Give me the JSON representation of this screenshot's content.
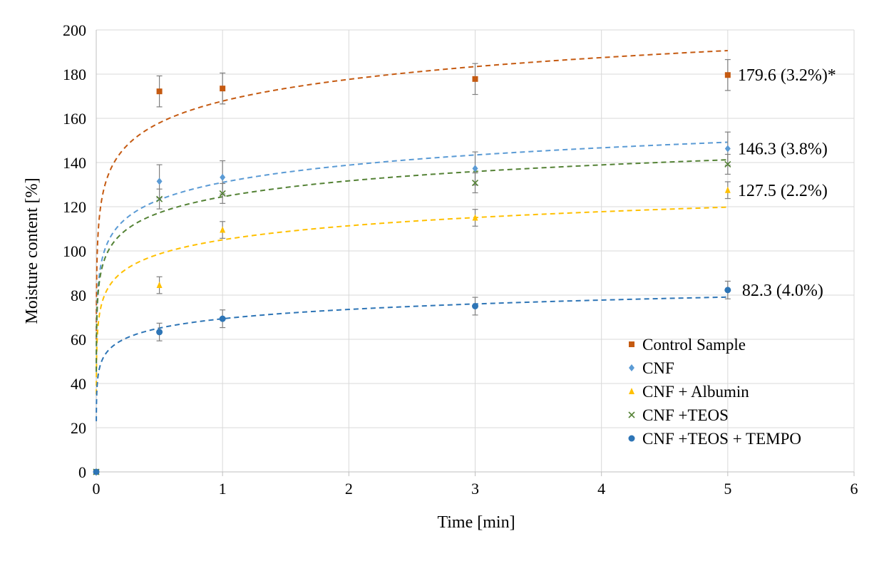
{
  "chart_data": {
    "type": "scatter",
    "title": "",
    "xlabel": "Time [min]",
    "ylabel": "Moisture content [%]",
    "xlim": [
      0,
      6
    ],
    "ylim": [
      0,
      200
    ],
    "x_ticks": [
      0,
      1,
      2,
      3,
      4,
      5,
      6
    ],
    "y_ticks": [
      0,
      20,
      40,
      60,
      80,
      100,
      120,
      140,
      160,
      180,
      200
    ],
    "grid": true,
    "legend_position": "bottom-right",
    "trendline": "logarithmic, dashed",
    "series": [
      {
        "name": "Control Sample",
        "marker": "square",
        "color": "#C55A11",
        "x": [
          0,
          0.5,
          1,
          3,
          5
        ],
        "y": [
          0,
          172.2,
          173.5,
          177.8,
          179.6
        ],
        "error": [
          0,
          7.0,
          7.0,
          7.0,
          7.0
        ],
        "trend": {
          "a": 167.8,
          "b": 14.2,
          "x_start": 0.0005
        }
      },
      {
        "name": "CNF",
        "marker": "diamond",
        "color": "#5B9BD5",
        "x": [
          0,
          0.5,
          1,
          3,
          5
        ],
        "y": [
          0,
          131.5,
          133.3,
          137.3,
          146.3
        ],
        "error": [
          0,
          7.5,
          7.5,
          7.5,
          7.5
        ],
        "trend": {
          "a": 131.0,
          "b": 11.3,
          "x_start": 0.0005
        }
      },
      {
        "name": "CNF + Albumin",
        "marker": "triangle",
        "color": "#FFC000",
        "x": [
          0,
          0.5,
          1,
          3,
          5
        ],
        "y": [
          0,
          84.5,
          109.5,
          115.0,
          127.5
        ],
        "error": [
          0,
          3.8,
          3.8,
          3.8,
          3.8
        ],
        "trend": {
          "a": 105.0,
          "b": 9.2,
          "x_start": 0.0005
        }
      },
      {
        "name": "CNF +TEOS",
        "marker": "x",
        "color": "#548235",
        "x": [
          0,
          0.5,
          1,
          3,
          5
        ],
        "y": [
          0,
          123.5,
          126.0,
          130.8,
          139.2
        ],
        "error": [
          0,
          4.5,
          4.5,
          4.5,
          4.5
        ],
        "trend": {
          "a": 124.5,
          "b": 10.4,
          "x_start": 0.0005
        }
      },
      {
        "name": "CNF +TEOS + TEMPO",
        "marker": "circle",
        "color": "#2E75B6",
        "x": [
          0,
          0.5,
          1,
          3,
          5
        ],
        "y": [
          0,
          63.3,
          69.3,
          75.0,
          82.3
        ],
        "error": [
          0,
          4.0,
          4.0,
          4.0,
          4.0
        ],
        "trend": {
          "a": 69.3,
          "b": 6.1,
          "x_start": 0.0005
        }
      }
    ],
    "annotations": [
      {
        "series": "Control Sample",
        "text": "179.6 (3.2%)*",
        "x": 5,
        "y": 179.6
      },
      {
        "series": "CNF",
        "text": "146.3 (3.8%)",
        "x": 5,
        "y": 146.3
      },
      {
        "series": "CNF + Albumin",
        "text": "127.5 (2.2%)",
        "x": 5,
        "y": 127.5
      },
      {
        "series": "CNF +TEOS + TEMPO",
        "text": "82.3 (4.0%)",
        "x": 5,
        "y": 82.3
      }
    ]
  }
}
